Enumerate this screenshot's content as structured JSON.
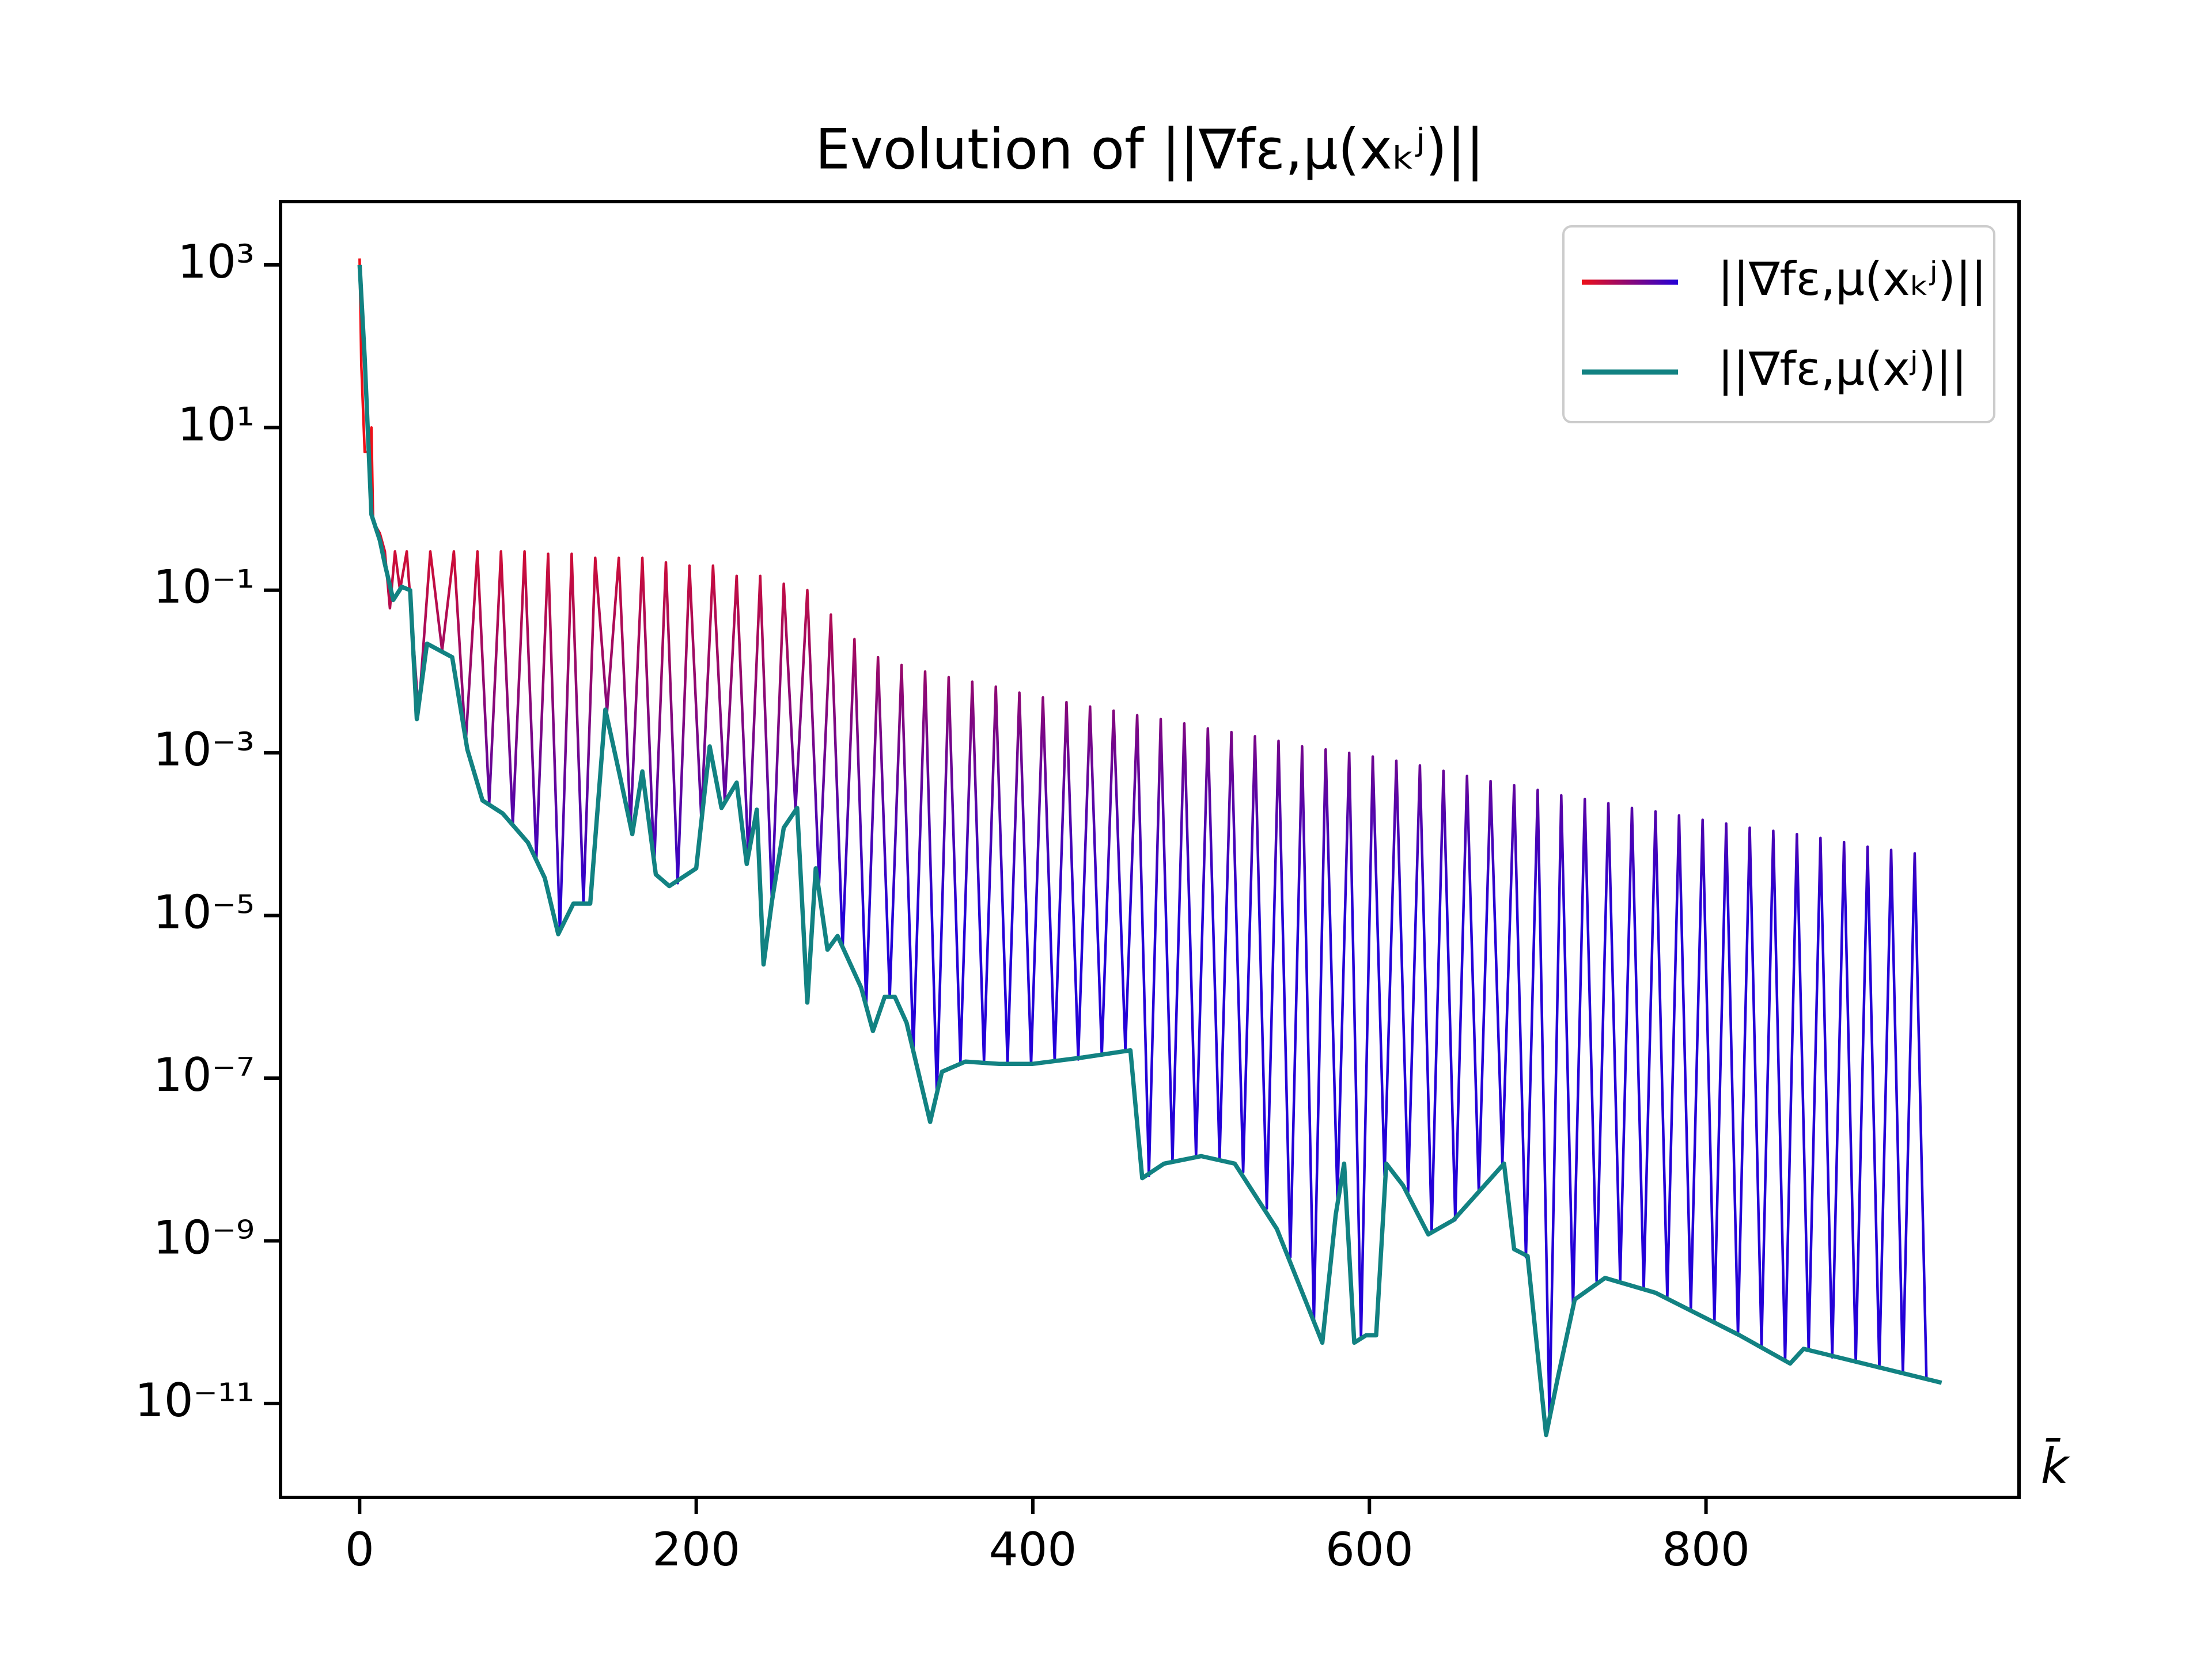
{
  "chart_data": {
    "type": "line",
    "title": "Evolution of ||∇fε,μ(xₖʲ)||",
    "x_label": "k̄",
    "xlim": [
      -47,
      986
    ],
    "xticks": [
      0,
      200,
      400,
      600,
      800
    ],
    "ylim": [
      7e-13,
      6000
    ],
    "yscale": "log",
    "yticks": [
      {
        "value": 1000,
        "label": "10³"
      },
      {
        "value": 10,
        "label": "10¹"
      },
      {
        "value": 0.1,
        "label": "10⁻¹"
      },
      {
        "value": 0.001,
        "label": "10⁻³"
      },
      {
        "value": 1e-05,
        "label": "10⁻⁵"
      },
      {
        "value": 1e-07,
        "label": "10⁻⁷"
      },
      {
        "value": 1e-09,
        "label": "10⁻⁹"
      },
      {
        "value": 1e-11,
        "label": "10⁻¹¹"
      }
    ],
    "legend": "upper right",
    "series": [
      {
        "name": "||∇fε,μ(xₖʲ)||",
        "color": [
          "#ee1018",
          "#2400d8"
        ],
        "x": [
          0,
          1,
          3,
          5,
          7,
          8,
          12,
          15,
          18,
          21,
          24,
          28,
          35,
          42,
          49,
          56,
          63,
          70,
          77,
          84,
          91,
          98,
          105,
          112,
          119,
          126,
          133,
          140,
          147,
          154,
          161,
          168,
          175,
          182,
          189,
          196,
          203,
          210,
          217,
          224,
          231,
          238,
          245,
          252,
          259,
          266,
          273,
          280,
          287,
          294,
          301,
          308,
          315,
          322,
          329,
          336,
          343,
          350,
          357,
          364,
          371,
          378,
          385,
          392,
          399,
          406,
          413,
          420,
          427,
          434,
          441,
          448,
          455,
          462,
          469,
          476,
          483,
          490,
          497,
          504,
          511,
          518,
          525,
          532,
          539,
          546,
          553,
          560,
          567,
          574,
          581,
          588,
          595,
          602,
          609,
          616,
          623,
          630,
          637,
          644,
          651,
          658,
          665,
          672,
          679,
          686,
          693,
          700,
          707,
          714,
          721,
          728,
          735,
          742,
          749,
          756,
          763,
          770,
          777,
          784,
          791,
          798,
          805,
          812,
          819,
          826,
          833,
          840,
          847,
          854,
          861,
          868,
          875,
          882,
          889,
          896,
          903,
          910,
          917,
          924,
          931
        ],
        "values": [
          1200,
          60,
          5,
          5,
          10,
          0.7,
          0.5,
          0.3,
          0.06,
          0.3,
          0.1,
          0.3,
          0.0032,
          0.3,
          0.018,
          0.3,
          0.0013,
          0.3,
          0.00024,
          0.3,
          0.00013,
          0.3,
          5e-05,
          0.28,
          6.3e-06,
          0.28,
          1.4e-05,
          0.25,
          0.0032,
          0.25,
          0.00013,
          0.25,
          4e-05,
          0.22,
          2.5e-05,
          0.2,
          0.00016,
          0.2,
          0.00025,
          0.15,
          5e-05,
          0.15,
          1.5e-05,
          0.12,
          0.0002,
          0.1,
          2.5e-05,
          0.05,
          4e-06,
          0.025,
          8e-07,
          0.015,
          1e-06,
          0.012,
          2e-07,
          0.01,
          6.3e-08,
          0.0085,
          1.6e-07,
          0.0075,
          1.6e-07,
          0.0065,
          1.5e-07,
          0.0055,
          1.5e-07,
          0.0048,
          1.6e-07,
          0.0042,
          1.7e-07,
          0.0037,
          1.9e-07,
          0.0033,
          2.2e-07,
          0.0029,
          6.3e-09,
          0.0026,
          9.5e-09,
          0.0023,
          1.1e-08,
          0.002,
          1e-08,
          0.0018,
          7e-09,
          0.0016,
          2.5e-09,
          0.0014,
          6.3e-10,
          0.0012,
          1e-10,
          0.0011,
          3.2e-09,
          0.001,
          6.3e-11,
          0.0009,
          6.3e-09,
          0.0008,
          4e-09,
          0.0007,
          1.3e-09,
          0.0006,
          1.8e-09,
          0.00052,
          4e-09,
          0.00045,
          9e-09,
          0.0004,
          6.3e-10,
          0.00035,
          6.3e-12,
          0.0003,
          1.6e-10,
          0.00027,
          3.2e-10,
          0.00024,
          3.2e-10,
          0.00021,
          2.5e-10,
          0.00019,
          2e-10,
          0.00017,
          1.4e-10,
          0.00015,
          1e-10,
          0.000135,
          7e-11,
          0.00012,
          5e-11,
          0.00011,
          3.3e-11,
          0.0001,
          4.5e-11,
          9e-05,
          3.7e-11,
          8e-05,
          3.2e-11,
          7e-05,
          2.7e-11,
          6.4e-05,
          2.3e-11,
          5.8e-05,
          2e-11
        ]
      },
      {
        "name": "||∇fε,μ(xʲ)||",
        "color": "#128282",
        "x": [
          0,
          3,
          7,
          12,
          15,
          20,
          25,
          30,
          34,
          40,
          55,
          64,
          73,
          85,
          100,
          110,
          118,
          127,
          137,
          146,
          155,
          162,
          168,
          176,
          184,
          200,
          208,
          215,
          224,
          230,
          236,
          240,
          245,
          252,
          260,
          266,
          271,
          278,
          284,
          298,
          305,
          312,
          318,
          325,
          339,
          346,
          360,
          380,
          400,
          430,
          458,
          465,
          478,
          500,
          520,
          545,
          572,
          580,
          585,
          591,
          598,
          604,
          610,
          620,
          635,
          650,
          680,
          686,
          694,
          705,
          712,
          722,
          740,
          770,
          820,
          850,
          858,
          940
        ],
        "values": [
          1000,
          72,
          0.85,
          0.41,
          0.21,
          0.076,
          0.11,
          0.1,
          0.0026,
          0.022,
          0.015,
          0.0011,
          0.00026,
          0.00018,
          7.9e-05,
          2.9e-05,
          5.9e-06,
          1.4e-05,
          1.4e-05,
          0.0034,
          0.00048,
          0.0001,
          0.00059,
          3.2e-05,
          2.3e-05,
          3.8e-05,
          0.0012,
          0.00021,
          0.00043,
          4.3e-05,
          0.0002,
          2.5e-06,
          1.5e-05,
          0.00012,
          0.00021,
          8.5e-07,
          3.8e-05,
          3.8e-06,
          5.6e-06,
          1.3e-06,
          3.8e-07,
          1e-06,
          1e-06,
          4.8e-07,
          2.9e-08,
          1.2e-07,
          1.6e-07,
          1.5e-07,
          1.5e-07,
          1.8e-07,
          2.2e-07,
          5.9e-09,
          8.9e-09,
          1.1e-08,
          8.9e-09,
          1.4e-09,
          5.6e-11,
          2.1e-09,
          8.9e-09,
          5.6e-11,
          6.9e-11,
          6.9e-11,
          8.9e-09,
          4.8e-09,
          1.2e-09,
          1.8e-09,
          8.9e-09,
          7.9e-10,
          6.5e-10,
          4.1e-12,
          2.1e-11,
          1.9e-10,
          3.5e-10,
          2.3e-10,
          6.9e-11,
          3.1e-11,
          4.7e-11,
          1.8e-11
        ]
      }
    ]
  }
}
